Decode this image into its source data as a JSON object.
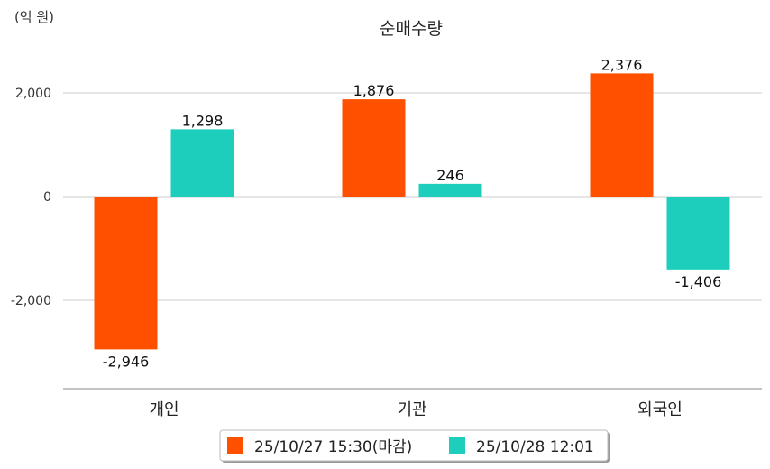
{
  "chart_data": {
    "type": "bar",
    "title": "순매수량",
    "unit_label": "(억 원)",
    "categories": [
      "개인",
      "기관",
      "외국인"
    ],
    "series": [
      {
        "name": "25/10/27 15:30(마감)",
        "color": "#FF5000",
        "values": [
          -2946,
          1876,
          2376
        ],
        "labels": [
          "-2,946",
          "1,876",
          "2,376"
        ]
      },
      {
        "name": "25/10/28 12:01",
        "color": "#1ECEBC",
        "values": [
          1298,
          246,
          -1406
        ],
        "labels": [
          "1,298",
          "246",
          "-1,406"
        ]
      }
    ],
    "yticks": [
      2000,
      0,
      -2000
    ],
    "ytick_labels": [
      "2,000",
      "0",
      "-2,000"
    ],
    "ylim": [
      -3700,
      2700
    ],
    "grid": true,
    "legend_position": "bottom"
  }
}
